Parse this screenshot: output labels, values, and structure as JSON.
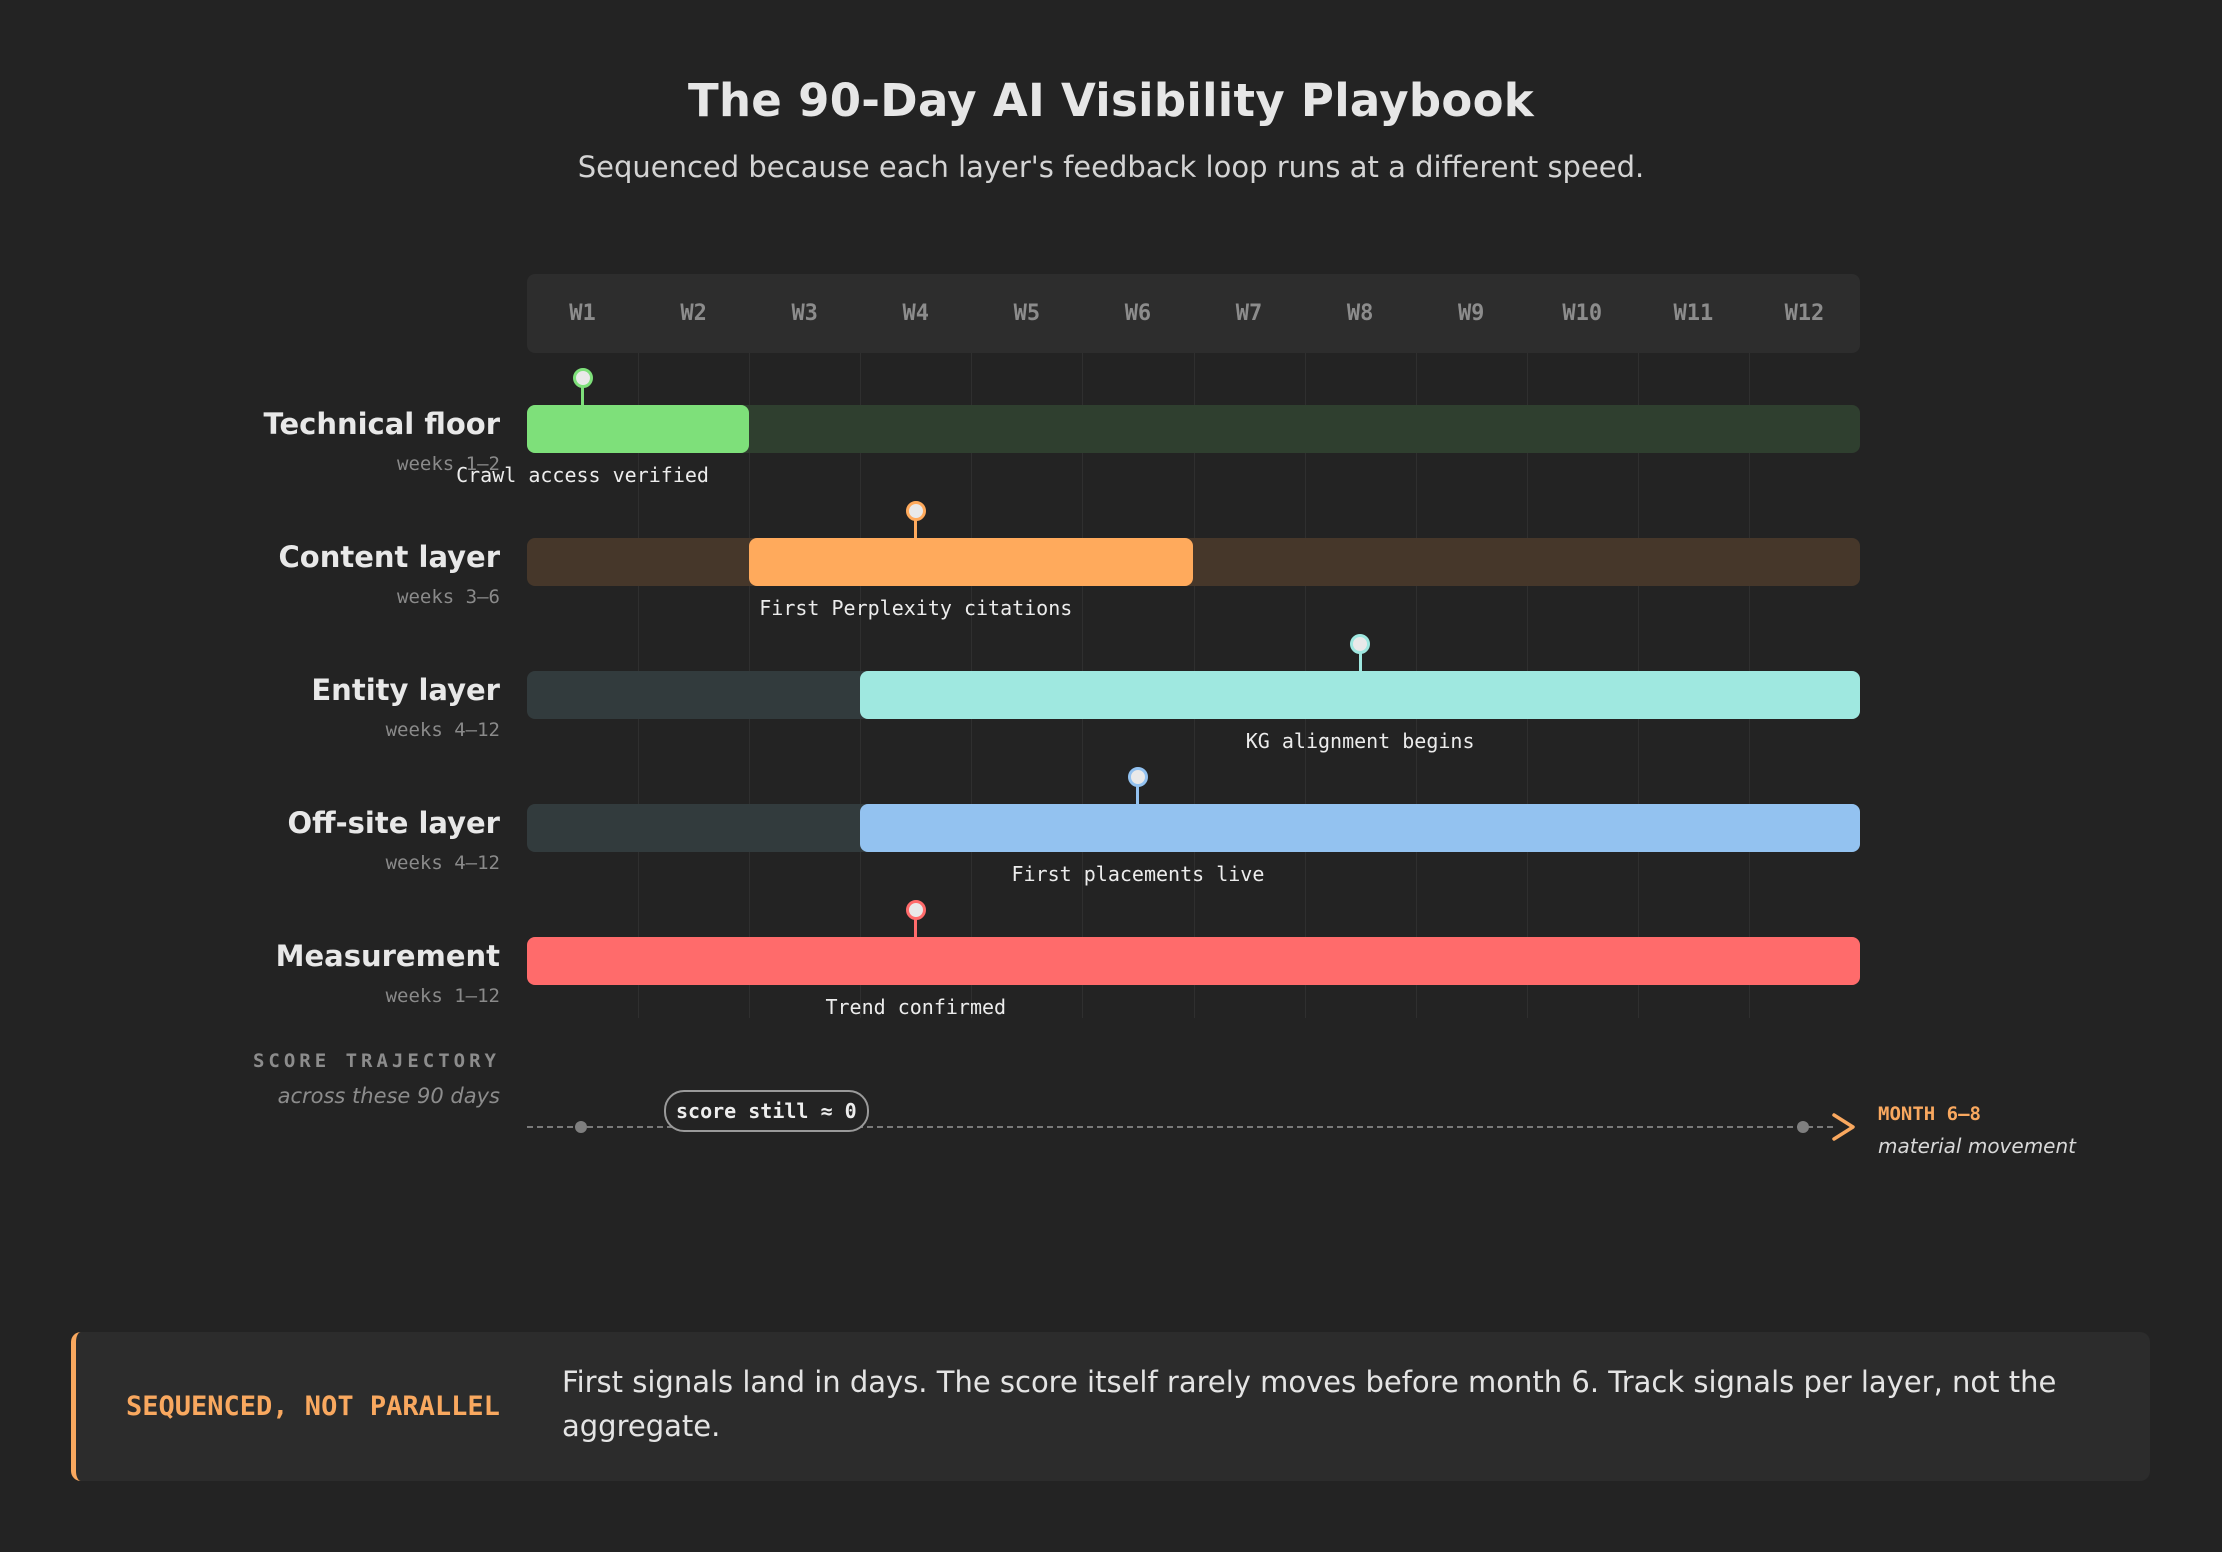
{
  "header": {
    "title": "The 90-Day AI Visibility Playbook",
    "subtitle": "Sequenced because each layer's feedback loop runs at a different speed."
  },
  "weeks": [
    "W1",
    "W2",
    "W3",
    "W4",
    "W5",
    "W6",
    "W7",
    "W8",
    "W9",
    "W10",
    "W11",
    "W12"
  ],
  "rows": [
    {
      "name": "Technical floor",
      "sub": "weeks 1–2",
      "start_week": 1,
      "end_week": 2,
      "shade_from_week": 3,
      "milestone": "Crawl access verified",
      "milestone_week": 1,
      "color": "#7ee07a",
      "track_color": "#2f3f2f"
    },
    {
      "name": "Content layer",
      "sub": "weeks 3–6",
      "start_week": 3,
      "end_week": 6,
      "shade_from_week": null,
      "milestone": "First Perplexity citations",
      "milestone_week": 4,
      "color": "#ffaa5c",
      "track_color": "#46372a"
    },
    {
      "name": "Entity layer",
      "sub": "weeks 4–12",
      "start_week": 4,
      "end_week": 12,
      "shade_from_week": null,
      "milestone": "KG alignment begins",
      "milestone_week": 8,
      "color": "#9fe8e0",
      "track_color": "#323b3d"
    },
    {
      "name": "Off-site layer",
      "sub": "weeks 4–12",
      "start_week": 4,
      "end_week": 12,
      "shade_from_week": null,
      "milestone": "First placements live",
      "milestone_week": 6,
      "color": "#93c2f0",
      "track_color": "#323b3d"
    },
    {
      "name": "Measurement",
      "sub": "weeks 1–12",
      "start_week": 1,
      "end_week": 12,
      "shade_from_week": null,
      "milestone": "Trend confirmed",
      "milestone_week": 4,
      "color": "#ff6b6b",
      "track_color": "#3a2a2a"
    }
  ],
  "trajectory": {
    "title": "SCORE TRAJECTORY",
    "subtitle": "across these 90 days",
    "pill": "score still ≈ 0",
    "end_label": "MONTH 6–8",
    "end_sub": "material movement"
  },
  "callout": {
    "label": "SEQUENCED, NOT PARALLEL",
    "text": "First signals land in days. The score itself rarely moves before month 6. Track signals per layer, not the aggregate."
  },
  "colors": {
    "accent": "#f9a85f",
    "background": "#232323"
  }
}
